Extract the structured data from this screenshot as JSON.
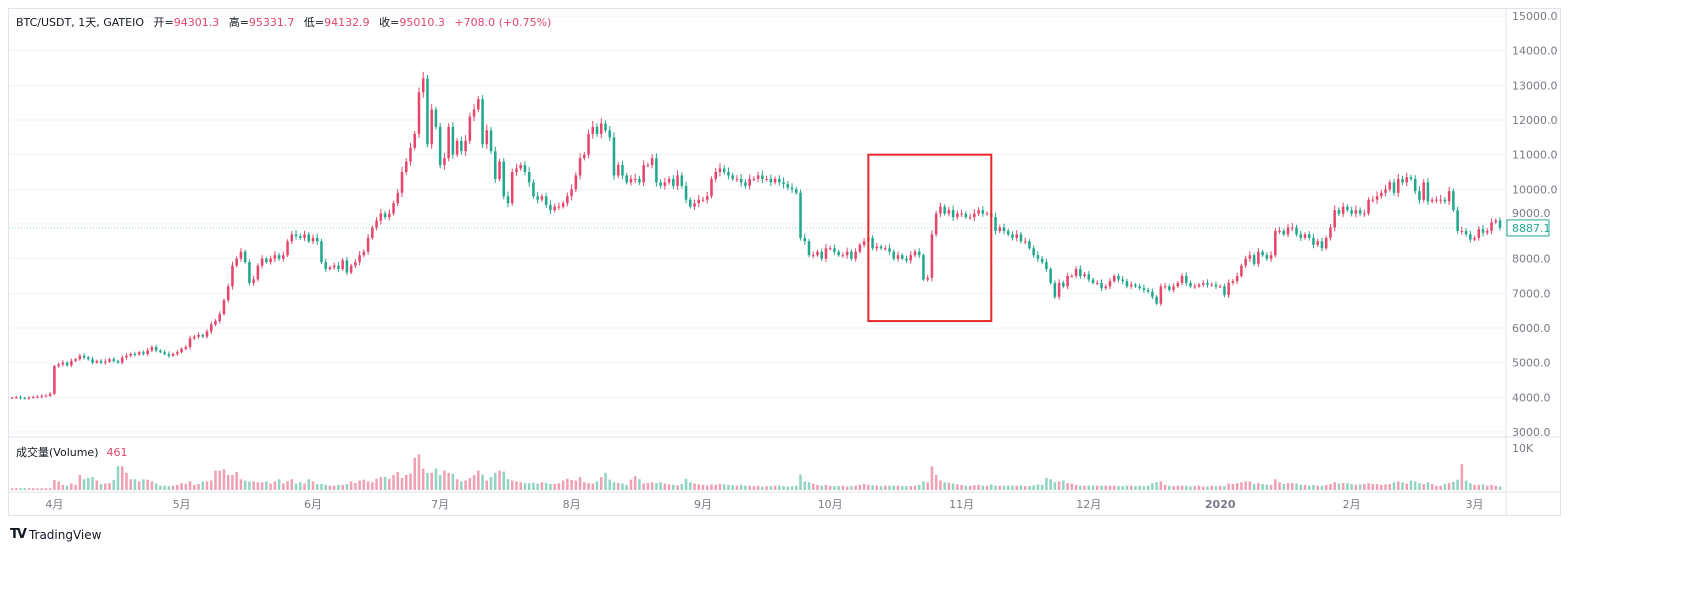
{
  "header": {
    "symbol": "BTC/USDT, 1天, GATEIO",
    "open_label": "开=",
    "open": "94301.3",
    "high_label": "高=",
    "high": "95331.7",
    "low_label": "低=",
    "low": "94132.9",
    "close_label": "收=",
    "close": "95010.3",
    "change": "+708.0 (+0.75%)"
  },
  "volume_pane": {
    "label": "成交量(Volume)",
    "value": "461",
    "axis_label": "10K"
  },
  "last_price_label": "8887.1",
  "branding": {
    "logo_text": "TradingView"
  },
  "colors": {
    "up": "#e5476b",
    "down": "#22a88f",
    "up_volume": "#f0a0b3",
    "down_volume": "#92d4c3",
    "highlight_box": "#e8282b",
    "grid": "#f0f3fa",
    "axis_text": "#787b86"
  },
  "chart_data": {
    "type": "candlestick",
    "convention": "red up, green down",
    "y_ticks": [
      "15000.0",
      "14000.0",
      "13000.0",
      "12000.0",
      "11000.0",
      "10000.0",
      "9000.0",
      "8000.0",
      "7000.0",
      "6000.0",
      "5000.0",
      "4000.0",
      "3000.0"
    ],
    "ylim": [
      3000,
      15000
    ],
    "x_ticks": [
      {
        "label": "4月",
        "date": "2019-04"
      },
      {
        "label": "5月",
        "date": "2019-05"
      },
      {
        "label": "6月",
        "date": "2019-06"
      },
      {
        "label": "7月",
        "date": "2019-07"
      },
      {
        "label": "8月",
        "date": "2019-08"
      },
      {
        "label": "9月",
        "date": "2019-09"
      },
      {
        "label": "10月",
        "date": "2019-10"
      },
      {
        "label": "11月",
        "date": "2019-11"
      },
      {
        "label": "12月",
        "date": "2019-12"
      },
      {
        "label": "2020",
        "date": "2020-01"
      },
      {
        "label": "2月",
        "date": "2020-02"
      },
      {
        "label": "3月",
        "date": "2020-03"
      }
    ],
    "highlight_box": {
      "from_date": "2019-10-10",
      "to_date": "2019-11-08",
      "price_low": 6200,
      "price_high": 11000
    },
    "daily_close": [
      {
        "month": "2019-03",
        "first_day": 22,
        "values": [
          3990,
          4000,
          3980,
          3970,
          3990,
          4010,
          4020,
          4030,
          4050,
          4100
        ]
      },
      {
        "month": "2019-04",
        "first_day": 1,
        "values": [
          4900,
          4950,
          5000,
          4920,
          5050,
          5100,
          5200,
          5150,
          5100,
          5000,
          5050,
          5000,
          5030,
          5100,
          5050,
          5000,
          5150,
          5200,
          5250,
          5230,
          5300,
          5250,
          5350,
          5450,
          5350,
          5300,
          5250,
          5200,
          5250,
          5300
        ]
      },
      {
        "month": "2019-05",
        "first_day": 1,
        "values": [
          5400,
          5450,
          5700,
          5750,
          5800,
          5750,
          5900,
          6100,
          6200,
          6400,
          6800,
          7200,
          7800,
          8000,
          8200,
          7900,
          7300,
          7400,
          7800,
          8000,
          7900,
          8000,
          8100,
          8000,
          8100,
          8500,
          8700,
          8650,
          8600,
          8700,
          8500
        ]
      },
      {
        "month": "2019-06",
        "first_day": 1,
        "values": [
          8600,
          8500,
          7900,
          7700,
          7750,
          7800,
          7700,
          7950,
          7600,
          7800,
          7900,
          8100,
          8200,
          8600,
          8900,
          9100,
          9300,
          9200,
          9300,
          9600,
          9900,
          10500,
          10800,
          11200,
          11600,
          12800,
          13200,
          11300,
          12300,
          11800
        ]
      },
      {
        "month": "2019-07",
        "first_day": 1,
        "values": [
          10700,
          10900,
          11800,
          11000,
          11400,
          11100,
          11400,
          12100,
          12300,
          12600,
          11300,
          11700,
          11100,
          10300,
          10800,
          9800,
          9600,
          10500,
          10600,
          10700,
          10500,
          10200,
          9800,
          9700,
          9800,
          9550,
          9400,
          9500,
          9500,
          9600,
          9800
        ]
      },
      {
        "month": "2019-08",
        "first_day": 1,
        "values": [
          10000,
          10400,
          10900,
          11000,
          11600,
          11800,
          11600,
          11900,
          11700,
          11500,
          10400,
          10700,
          10400,
          10200,
          10300,
          10300,
          10200,
          10700,
          10700,
          10900,
          10200,
          10100,
          10200,
          10300,
          10100,
          10400,
          10100,
          9700,
          9500,
          9600,
          9700
        ]
      },
      {
        "month": "2019-09",
        "first_day": 1,
        "values": [
          9700,
          9800,
          10300,
          10500,
          10600,
          10500,
          10400,
          10300,
          10300,
          10200,
          10100,
          10300,
          10300,
          10400,
          10300,
          10300,
          10200,
          10300,
          10200,
          10150,
          10050,
          10000,
          9900,
          8600,
          8500,
          8100,
          8100,
          8200,
          8000,
          8300
        ]
      },
      {
        "month": "2019-10",
        "first_day": 1,
        "values": [
          8300,
          8200,
          8100,
          8100,
          8200,
          8000,
          8200,
          8400,
          8500,
          8600,
          8300,
          8350,
          8300,
          8300,
          8200,
          8000,
          8100,
          8000,
          7950,
          8100,
          8200,
          8100,
          7400,
          7450,
          8700,
          9300,
          9500,
          9300,
          9400,
          9200,
          9300
        ]
      },
      {
        "month": "2019-11",
        "first_day": 1,
        "values": [
          9300,
          9200,
          9200,
          9300,
          9400,
          9300,
          9300,
          9200,
          8800,
          8900,
          8800,
          8700,
          8600,
          8700,
          8500,
          8500,
          8300,
          8100,
          8000,
          7900,
          7700,
          7300,
          6900,
          7300,
          7200,
          7500,
          7500,
          7700,
          7500,
          7550
        ]
      },
      {
        "month": "2019-12",
        "first_day": 1,
        "values": [
          7400,
          7300,
          7300,
          7150,
          7200,
          7350,
          7500,
          7400,
          7350,
          7200,
          7250,
          7200,
          7150,
          7100,
          7050,
          6900,
          6700,
          7200,
          7200,
          7100,
          7200,
          7300,
          7500,
          7300,
          7200,
          7200,
          7250,
          7300,
          7250,
          7250,
          7200
        ]
      },
      {
        "month": "2020-01",
        "first_day": 1,
        "values": [
          7200,
          6950,
          7300,
          7350,
          7500,
          7800,
          8000,
          8100,
          7850,
          8200,
          8100,
          8000,
          8100,
          8800,
          8800,
          8700,
          8900,
          8900,
          8700,
          8600,
          8700,
          8600,
          8400,
          8500,
          8300,
          8600,
          8900,
          9400,
          9300,
          9500,
          9400
        ]
      },
      {
        "month": "2020-02",
        "first_day": 1,
        "values": [
          9300,
          9400,
          9300,
          9300,
          9700,
          9700,
          9800,
          9900,
          10000,
          10200,
          9900,
          10300,
          10200,
          10350,
          10300,
          9950,
          9700,
          10200,
          9650,
          9700,
          9700,
          9700,
          9650,
          9950,
          9400,
          8800,
          8800,
          8700,
          8550
        ]
      },
      {
        "month": "2020-03",
        "first_day": 1,
        "values": [
          8600,
          8850,
          8750,
          8800,
          9050,
          9100,
          8887.1
        ]
      }
    ],
    "volume_unit": "K",
    "volume_ylim": [
      0,
      10
    ],
    "daily_volume": [
      [
        0.4,
        0.4,
        0.4,
        0.4,
        0.4,
        0.4,
        0.4,
        0.4,
        0.4,
        0.4
      ],
      [
        2.3,
        2.0,
        1.2,
        1.0,
        1.5,
        1.2,
        3.5,
        2.5,
        2.8,
        3.0,
        2.2,
        1.4,
        1.5,
        1.6,
        2.3,
        5.5,
        5.5,
        4.0,
        2.5,
        2.5,
        2.0,
        2.5,
        2.4,
        2.0,
        1.5,
        1.0,
        1.0,
        0.9,
        1.0,
        1.2
      ],
      [
        1.6,
        1.4,
        2.0,
        1.2,
        1.4,
        2.0,
        2.0,
        2.2,
        4.5,
        4.5,
        4.8,
        3.5,
        3.5,
        4.2,
        2.5,
        2.2,
        2.0,
        2.0,
        1.8,
        1.8,
        2.0,
        1.5,
        2.0,
        2.5,
        1.5,
        2.0,
        2.5,
        1.5,
        1.8,
        1.5,
        2.5
      ],
      [
        2.0,
        1.4,
        1.4,
        1.2,
        1.0,
        1.0,
        1.2,
        1.2,
        1.4,
        2.0,
        1.6,
        2.2,
        2.4,
        2.0,
        1.8,
        2.6,
        3.0,
        3.0,
        2.6,
        3.5,
        4.2,
        2.8,
        3.5,
        3.8,
        7.5,
        8.3,
        5.0,
        4.0,
        4.0,
        5.0
      ],
      [
        3.5,
        4.5,
        4.0,
        3.8,
        2.5,
        2.0,
        2.2,
        2.8,
        3.5,
        4.5,
        3.6,
        2.2,
        3.0,
        4.0,
        4.5,
        4.3,
        2.5,
        2.2,
        2.0,
        1.8,
        1.6,
        1.6,
        1.7,
        1.5,
        1.8,
        1.6,
        1.4,
        1.4,
        1.6,
        2.2,
        2.6
      ],
      [
        2.3,
        2.2,
        3.0,
        1.8,
        1.6,
        1.5,
        2.0,
        3.0,
        4.0,
        2.4,
        1.8,
        1.6,
        1.5,
        1.2,
        2.4,
        3.2,
        2.5,
        1.5,
        1.6,
        1.8,
        1.6,
        1.8,
        1.5,
        1.3,
        1.2,
        1.1,
        1.4,
        2.6,
        1.8,
        1.5,
        1.3
      ],
      [
        1.2,
        1.1,
        1.3,
        1.2,
        1.4,
        1.3,
        1.2,
        1.1,
        1.0,
        1.2,
        1.0,
        1.0,
        0.9,
        1.0,
        0.8,
        0.9,
        0.9,
        1.0,
        1.0,
        0.9,
        0.8,
        0.9,
        1.0,
        3.6,
        2.0,
        1.8,
        1.5,
        1.2,
        1.0,
        1.2
      ],
      [
        1.0,
        0.9,
        0.9,
        1.0,
        0.8,
        0.9,
        1.0,
        1.2,
        1.4,
        1.2,
        1.1,
        1.0,
        0.9,
        1.0,
        1.0,
        1.0,
        1.0,
        0.9,
        0.9,
        0.9,
        1.0,
        1.2,
        2.0,
        1.8,
        5.5,
        3.5,
        2.2,
        1.8,
        1.7,
        1.5,
        1.3
      ],
      [
        1.2,
        1.0,
        1.0,
        1.1,
        1.2,
        1.0,
        1.0,
        1.3,
        1.0,
        1.0,
        1.0,
        1.0,
        1.0,
        1.0,
        1.1,
        0.9,
        0.9,
        1.1,
        1.3,
        1.2,
        2.8,
        2.5,
        1.8,
        2.0,
        2.2,
        1.6,
        1.5,
        1.2,
        1.0,
        1.0
      ],
      [
        1.0,
        1.0,
        1.0,
        1.0,
        1.0,
        1.0,
        1.0,
        0.9,
        0.9,
        1.0,
        1.0,
        0.9,
        1.0,
        0.9,
        1.0,
        1.6,
        1.8,
        2.0,
        1.2,
        1.0,
        0.9,
        1.0,
        1.0,
        1.0,
        0.8,
        0.9,
        1.0,
        0.8,
        0.8,
        1.0,
        0.9
      ],
      [
        1.0,
        0.9,
        1.5,
        1.4,
        1.6,
        1.8,
        2.0,
        2.0,
        1.4,
        1.6,
        1.4,
        1.2,
        1.2,
        2.5,
        1.8,
        1.4,
        1.6,
        1.6,
        1.5,
        1.2,
        1.2,
        1.0,
        1.2,
        1.0,
        1.0,
        1.2,
        1.4,
        1.8,
        1.5,
        1.6,
        1.6
      ],
      [
        1.4,
        1.2,
        1.3,
        1.4,
        1.6,
        1.4,
        1.4,
        1.2,
        1.3,
        1.4,
        1.8,
        2.0,
        1.8,
        1.5,
        2.2,
        2.0,
        1.6,
        1.4,
        1.8,
        1.4,
        1.0,
        1.0,
        1.4,
        1.6,
        1.9,
        2.4,
        6.0,
        2.2,
        1.6
      ],
      [
        1.2,
        1.2,
        1.3,
        1.0,
        1.2,
        1.0,
        0.8
      ]
    ]
  }
}
